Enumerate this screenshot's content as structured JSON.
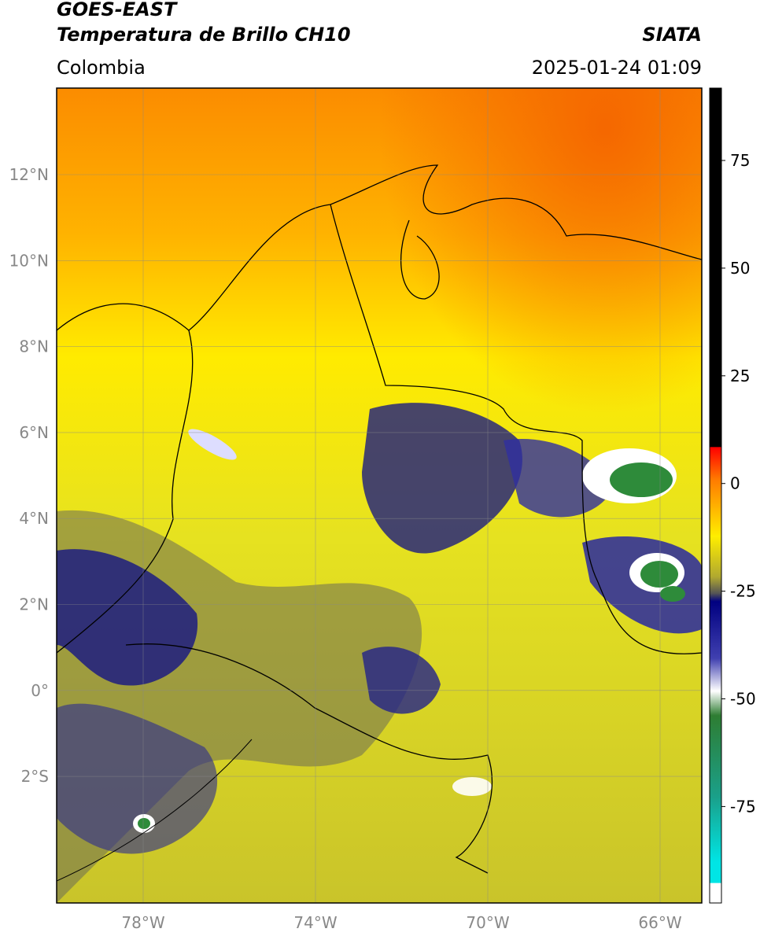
{
  "header": {
    "title": "GOES-EAST",
    "subtitle": "Temperatura de Brillo CH10",
    "source": "SIATA",
    "region": "Colombia",
    "datetime": "2025-01-24 01:09"
  },
  "map": {
    "lat_ticks": [
      "12°N",
      "10°N",
      "8°N",
      "6°N",
      "4°N",
      "2°N",
      "0°",
      "2°S"
    ],
    "lon_ticks": [
      "78°W",
      "74°W",
      "70°W",
      "66°W"
    ]
  },
  "colorbar": {
    "ticks": [
      "75",
      "50",
      "25",
      "0",
      "-25",
      "-50",
      "-75"
    ]
  }
}
